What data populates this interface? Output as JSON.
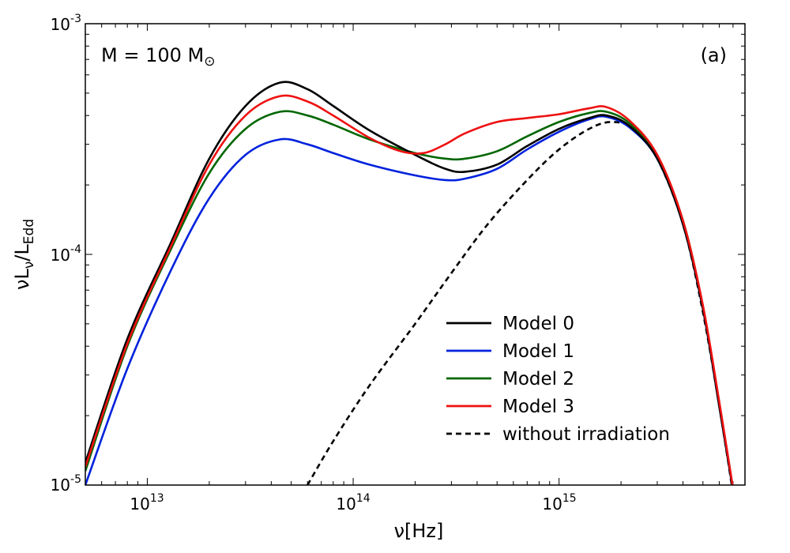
{
  "chart_data": {
    "type": "line",
    "xscale": "log",
    "yscale": "log",
    "xlim": [
      5000000000000.0,
      8000000000000000.0
    ],
    "ylim": [
      1e-05,
      0.001
    ],
    "xlabel": {
      "base": "ν[Hz]"
    },
    "ylabel": {
      "main": "νL",
      "sub1": "ν",
      "mid": "/L",
      "sub2": "Edd"
    },
    "x_ticks": [
      {
        "base": "10",
        "exp": "13",
        "value": 10000000000000.0
      },
      {
        "base": "10",
        "exp": "14",
        "value": 100000000000000.0
      },
      {
        "base": "10",
        "exp": "15",
        "value": 1000000000000000.0
      }
    ],
    "y_ticks": [
      {
        "base": "10",
        "exp": "-5",
        "value": 1e-05
      },
      {
        "base": "10",
        "exp": "-4",
        "value": 0.0001
      },
      {
        "base": "10",
        "exp": "-3",
        "value": 0.001
      }
    ],
    "annotation_mass": {
      "prefix": "M = 100 M",
      "symbol": "⊙"
    },
    "panel_label": "(a)",
    "legend_position": "lower-center-right",
    "series": [
      {
        "name": "Model 0",
        "color": "#000000",
        "dash": false,
        "points": [
          [
            5000000000000.0,
            1.25e-05
          ],
          [
            8000000000000.0,
            4.3e-05
          ],
          [
            13000000000000.0,
            0.000112
          ],
          [
            20000000000000.0,
            0.00026
          ],
          [
            30000000000000.0,
            0.00044
          ],
          [
            44000000000000.0,
            0.000555
          ],
          [
            60000000000000.0,
            0.00052
          ],
          [
            80000000000000.0,
            0.00044
          ],
          [
            120000000000000.0,
            0.000345
          ],
          [
            200000000000000.0,
            0.00027
          ],
          [
            280000000000000.0,
            0.000235
          ],
          [
            350000000000000.0,
            0.000228
          ],
          [
            500000000000000.0,
            0.000245
          ],
          [
            700000000000000.0,
            0.000295
          ],
          [
            1000000000000000.0,
            0.00035
          ],
          [
            1400000000000000.0,
            0.00039
          ],
          [
            1700000000000000.0,
            0.0004
          ],
          [
            2200000000000000.0,
            0.00036
          ],
          [
            3000000000000000.0,
            0.00026
          ],
          [
            4000000000000000.0,
            0.000135
          ],
          [
            5000000000000000.0,
            5.8e-05
          ],
          [
            6000000000000000.0,
            2.2e-05
          ],
          [
            7000000000000000.0,
            9.5e-06
          ]
        ]
      },
      {
        "name": "Model 1",
        "color": "#0022dd",
        "dash": false,
        "points": [
          [
            5000000000000.0,
            1e-05
          ],
          [
            8000000000000.0,
            3.2e-05
          ],
          [
            13000000000000.0,
            8.5e-05
          ],
          [
            20000000000000.0,
            0.000175
          ],
          [
            30000000000000.0,
            0.00027
          ],
          [
            44000000000000.0,
            0.000315
          ],
          [
            60000000000000.0,
            0.0003
          ],
          [
            80000000000000.0,
            0.000275
          ],
          [
            120000000000000.0,
            0.000245
          ],
          [
            200000000000000.0,
            0.00022
          ],
          [
            280000000000000.0,
            0.00021
          ],
          [
            350000000000000.0,
            0.000213
          ],
          [
            500000000000000.0,
            0.000235
          ],
          [
            700000000000000.0,
            0.000285
          ],
          [
            1000000000000000.0,
            0.00034
          ],
          [
            1400000000000000.0,
            0.000385
          ],
          [
            1700000000000000.0,
            0.000395
          ],
          [
            2200000000000000.0,
            0.000355
          ],
          [
            3000000000000000.0,
            0.00026
          ],
          [
            4000000000000000.0,
            0.000135
          ],
          [
            5000000000000000.0,
            5.8e-05
          ],
          [
            6000000000000000.0,
            2.2e-05
          ],
          [
            7000000000000000.0,
            9.5e-06
          ]
        ]
      },
      {
        "name": "Model 2",
        "color": "#006600",
        "dash": false,
        "points": [
          [
            5000000000000.0,
            1.15e-05
          ],
          [
            8000000000000.0,
            4e-05
          ],
          [
            13000000000000.0,
            0.000105
          ],
          [
            20000000000000.0,
            0.000225
          ],
          [
            30000000000000.0,
            0.00035
          ],
          [
            44000000000000.0,
            0.000415
          ],
          [
            60000000000000.0,
            0.0004
          ],
          [
            80000000000000.0,
            0.000365
          ],
          [
            120000000000000.0,
            0.000315
          ],
          [
            200000000000000.0,
            0.000275
          ],
          [
            280000000000000.0,
            0.00026
          ],
          [
            350000000000000.0,
            0.00026
          ],
          [
            500000000000000.0,
            0.00028
          ],
          [
            700000000000000.0,
            0.000325
          ],
          [
            1000000000000000.0,
            0.000375
          ],
          [
            1400000000000000.0,
            0.00041
          ],
          [
            1700000000000000.0,
            0.000415
          ],
          [
            2200000000000000.0,
            0.00037
          ],
          [
            3000000000000000.0,
            0.000265
          ],
          [
            4000000000000000.0,
            0.00014
          ],
          [
            5000000000000000.0,
            5.9e-05
          ],
          [
            6000000000000000.0,
            2.25e-05
          ],
          [
            7000000000000000.0,
            9.6e-06
          ]
        ]
      },
      {
        "name": "Model 3",
        "color": "#ee1111",
        "dash": false,
        "points": [
          [
            5000000000000.0,
            1.2e-05
          ],
          [
            8000000000000.0,
            4.1e-05
          ],
          [
            13000000000000.0,
            0.000108
          ],
          [
            20000000000000.0,
            0.000245
          ],
          [
            30000000000000.0,
            0.0004
          ],
          [
            44000000000000.0,
            0.000485
          ],
          [
            60000000000000.0,
            0.00046
          ],
          [
            80000000000000.0,
            0.0004
          ],
          [
            120000000000000.0,
            0.00032
          ],
          [
            170000000000000.0,
            0.00028
          ],
          [
            220000000000000.0,
            0.000275
          ],
          [
            280000000000000.0,
            0.0003
          ],
          [
            350000000000000.0,
            0.000335
          ],
          [
            500000000000000.0,
            0.000375
          ],
          [
            700000000000000.0,
            0.00039
          ],
          [
            1000000000000000.0,
            0.000405
          ],
          [
            1400000000000000.0,
            0.00043
          ],
          [
            1700000000000000.0,
            0.000435
          ],
          [
            2200000000000000.0,
            0.00038
          ],
          [
            3000000000000000.0,
            0.00027
          ],
          [
            4000000000000000.0,
            0.00014
          ],
          [
            5000000000000000.0,
            6e-05
          ],
          [
            6000000000000000.0,
            2.3e-05
          ],
          [
            7000000000000000.0,
            9.7e-06
          ]
        ]
      },
      {
        "name": "without irradiation",
        "color": "#000000",
        "dash": true,
        "points": [
          [
            60000000000000.0,
            1e-05
          ],
          [
            80000000000000.0,
            1.55e-05
          ],
          [
            120000000000000.0,
            2.7e-05
          ],
          [
            200000000000000.0,
            5e-05
          ],
          [
            300000000000000.0,
            8.3e-05
          ],
          [
            450000000000000.0,
            0.000135
          ],
          [
            700000000000000.0,
            0.00021
          ],
          [
            1000000000000000.0,
            0.000285
          ],
          [
            1400000000000000.0,
            0.00035
          ],
          [
            1800000000000000.0,
            0.000375
          ],
          [
            2300000000000000.0,
            0.00035
          ],
          [
            3000000000000000.0,
            0.00026
          ],
          [
            4000000000000000.0,
            0.000135
          ],
          [
            5000000000000000.0,
            5.6e-05
          ],
          [
            6000000000000000.0,
            2.2e-05
          ],
          [
            7000000000000000.0,
            9.2e-06
          ]
        ]
      }
    ]
  }
}
